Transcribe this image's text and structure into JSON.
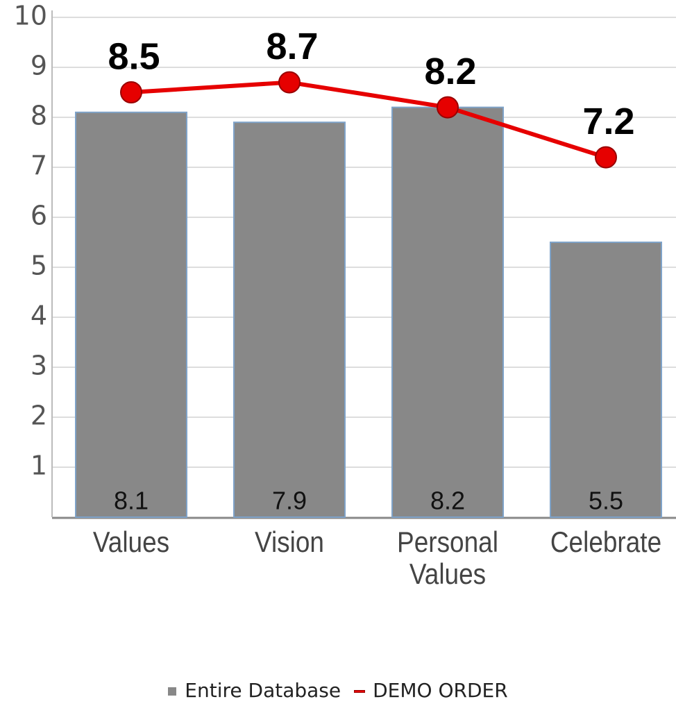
{
  "chart_data": {
    "type": "bar",
    "categories": [
      "Values",
      "Vision",
      "Personal Values",
      "Celebrate"
    ],
    "series": [
      {
        "name": "Entire Database",
        "type": "bar",
        "color": "#888888",
        "values": [
          8.1,
          7.9,
          8.2,
          5.5
        ]
      },
      {
        "name": "DEMO ORDER",
        "type": "line",
        "color": "#e60000",
        "values": [
          8.5,
          8.7,
          8.2,
          7.2
        ]
      }
    ],
    "ylim": [
      0,
      10
    ],
    "yticks": [
      1,
      2,
      3,
      4,
      5,
      6,
      7,
      8,
      9,
      10
    ],
    "grid": true,
    "legend": "bottom"
  }
}
